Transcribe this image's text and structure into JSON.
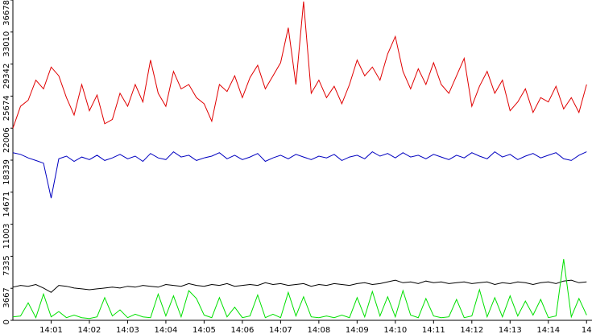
{
  "chart_data": {
    "type": "line",
    "x": [
      0,
      0.2,
      0.4,
      0.6,
      0.8,
      1,
      1.2,
      1.4,
      1.6,
      1.8,
      2,
      2.2,
      2.4,
      2.6,
      2.8,
      3,
      3.2,
      3.4,
      3.6,
      3.8,
      4,
      4.2,
      4.4,
      4.6,
      4.8,
      5,
      5.2,
      5.4,
      5.6,
      5.8,
      6,
      6.2,
      6.4,
      6.6,
      6.8,
      7,
      7.2,
      7.4,
      7.6,
      7.8,
      8,
      8.2,
      8.4,
      8.6,
      8.8,
      9,
      9.2,
      9.4,
      9.6,
      9.8,
      10,
      10.2,
      10.4,
      10.6,
      10.8,
      11,
      11.2,
      11.4,
      11.6,
      11.8,
      12,
      12.2,
      12.4,
      12.6,
      12.8,
      13,
      13.2,
      13.4,
      13.6,
      13.8,
      14,
      14.2,
      14.4,
      14.6,
      14.8,
      15
    ],
    "series": [
      {
        "name": "red",
        "color": "#e00000",
        "values": [
          22000,
          24500,
          25200,
          27500,
          26500,
          29000,
          28000,
          25500,
          23500,
          27000,
          24000,
          25800,
          22500,
          23000,
          26000,
          24500,
          27000,
          25000,
          29800,
          26000,
          24500,
          28500,
          26500,
          27000,
          25500,
          24800,
          22800,
          27000,
          26200,
          28000,
          25500,
          27800,
          29200,
          26500,
          28000,
          29500,
          33500,
          27000,
          36500,
          26000,
          27500,
          25500,
          26800,
          24800,
          27000,
          29800,
          28000,
          29000,
          27500,
          30500,
          32500,
          28500,
          26500,
          28800,
          27000,
          29500,
          27000,
          26000,
          28000,
          30000,
          24500,
          26800,
          28500,
          26000,
          27500,
          24000,
          25000,
          26500,
          23800,
          25500,
          25000,
          26800,
          24200,
          25500,
          23800,
          27000
        ]
      },
      {
        "name": "blue",
        "color": "#0000c0",
        "values": [
          19200,
          19000,
          18600,
          18300,
          18000,
          14000,
          18500,
          18800,
          18200,
          18700,
          18400,
          18900,
          18300,
          18600,
          19000,
          18500,
          18800,
          18200,
          19100,
          18600,
          18400,
          19300,
          18700,
          18900,
          18300,
          18600,
          18800,
          19200,
          18500,
          18900,
          18400,
          18700,
          19100,
          18200,
          18600,
          18900,
          18500,
          19000,
          18700,
          18400,
          18800,
          18600,
          19000,
          18300,
          18700,
          18900,
          18500,
          19300,
          18800,
          19100,
          18600,
          19200,
          18700,
          18900,
          18500,
          19000,
          18700,
          18400,
          18900,
          18600,
          19200,
          18800,
          18500,
          19300,
          18700,
          19000,
          18400,
          18800,
          19100,
          18600,
          18900,
          19200,
          18500,
          18300,
          18900,
          19300
        ]
      },
      {
        "name": "black",
        "color": "#000000",
        "values": [
          3800,
          4000,
          3900,
          4100,
          3700,
          3200,
          4000,
          3900,
          3700,
          3600,
          3500,
          3600,
          3700,
          3800,
          3700,
          3900,
          3800,
          4000,
          3900,
          3800,
          4100,
          4000,
          3900,
          4200,
          4000,
          3900,
          4100,
          4000,
          4200,
          3900,
          4000,
          4100,
          4000,
          4300,
          4100,
          4200,
          4000,
          4100,
          4200,
          3900,
          4100,
          4000,
          4200,
          4100,
          4000,
          4200,
          4300,
          4100,
          4200,
          4400,
          4600,
          4300,
          4400,
          4200,
          4500,
          4300,
          4400,
          4200,
          4300,
          4400,
          4200,
          4300,
          4400,
          4100,
          4300,
          4200,
          4400,
          4300,
          4100,
          4300,
          4400,
          4200,
          4500,
          4600,
          4300,
          4400
        ]
      },
      {
        "name": "green",
        "color": "#00e000",
        "values": [
          400,
          500,
          2000,
          300,
          3000,
          400,
          1000,
          300,
          600,
          300,
          200,
          400,
          2600,
          500,
          1200,
          300,
          700,
          400,
          300,
          3000,
          500,
          2800,
          400,
          3400,
          2500,
          600,
          300,
          2600,
          400,
          1500,
          300,
          500,
          2900,
          300,
          700,
          300,
          3200,
          500,
          2700,
          400,
          300,
          500,
          300,
          600,
          300,
          2600,
          400,
          3300,
          500,
          2700,
          400,
          3400,
          600,
          300,
          2500,
          500,
          300,
          400,
          2400,
          300,
          500,
          3500,
          400,
          2600,
          400,
          2800,
          500,
          2200,
          600,
          2400,
          300,
          500,
          7000,
          400,
          2500,
          600
        ]
      }
    ],
    "xlim": [
      0,
      15.1
    ],
    "ylim": [
      0,
      36678
    ],
    "xticks": [
      {
        "value": 1,
        "label": "14:01"
      },
      {
        "value": 2,
        "label": "14:02"
      },
      {
        "value": 3,
        "label": "14:03"
      },
      {
        "value": 4,
        "label": "14:04"
      },
      {
        "value": 5,
        "label": "14:05"
      },
      {
        "value": 6,
        "label": "14:06"
      },
      {
        "value": 7,
        "label": "14:07"
      },
      {
        "value": 8,
        "label": "14:08"
      },
      {
        "value": 9,
        "label": "14:09"
      },
      {
        "value": 10,
        "label": "14:10"
      },
      {
        "value": 11,
        "label": "14:11"
      },
      {
        "value": 12,
        "label": "14:12"
      },
      {
        "value": 13,
        "label": "14:13"
      },
      {
        "value": 14,
        "label": "14:14"
      },
      {
        "value": 15,
        "label": "14"
      }
    ],
    "yticks": [
      0,
      3667,
      7335,
      11003,
      14671,
      18339,
      22006,
      25674,
      29342,
      33010,
      36678
    ],
    "grid": false
  }
}
